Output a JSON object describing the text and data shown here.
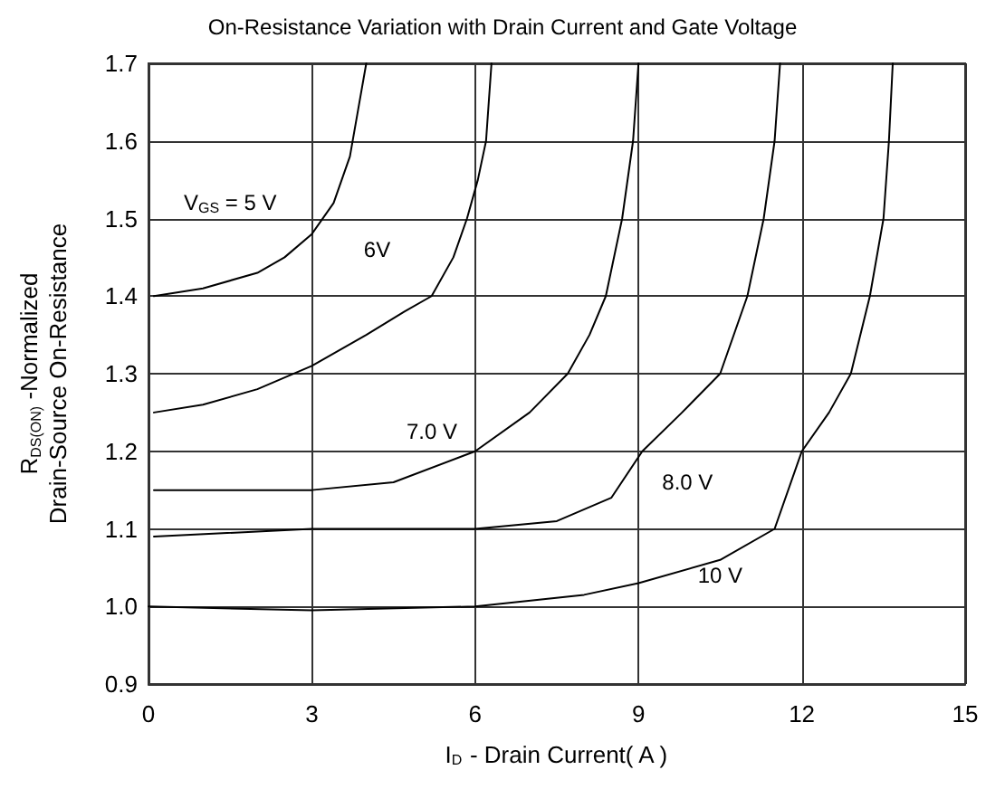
{
  "chart_data": {
    "type": "line",
    "title": "On-Resistance Variation with Drain Current and Gate Voltage",
    "xlabel": "I$_{D}$ - Drain Current( A )",
    "ylabel": "R$_{DS(ON)}$ -Normalized\nDrain-Source On-Resistance",
    "xlim": [
      0,
      15
    ],
    "xticks": [
      0,
      3,
      6,
      9,
      12,
      15
    ],
    "ylim": [
      0.9,
      1.7
    ],
    "yticks": [
      0.9,
      {
        "value": 1,
        "label": "1.0"
      },
      1.1,
      1.2,
      1.3,
      1.4,
      1.5,
      1.6,
      1.7
    ],
    "grid": true,
    "marker": "none",
    "line_style": "solid",
    "series": [
      {
        "name": "V$_{GS}$ = 5 V",
        "color": "#000000",
        "x": [
          0.1,
          1,
          2,
          2.5,
          3,
          3.4,
          3.7,
          3.85,
          4.0
        ],
        "values": [
          1.4,
          1.41,
          1.43,
          1.45,
          1.48,
          1.52,
          1.58,
          1.64,
          1.7
        ]
      },
      {
        "name": "6V",
        "color": "#000000",
        "x": [
          0.1,
          1,
          2,
          3,
          4,
          4.7,
          5.2,
          5.6,
          5.85,
          6.05,
          6.2,
          6.3
        ],
        "values": [
          1.25,
          1.26,
          1.28,
          1.31,
          1.35,
          1.38,
          1.4,
          1.45,
          1.5,
          1.55,
          1.6,
          1.7
        ]
      },
      {
        "name": "7.0 V",
        "color": "#000000",
        "x": [
          0.1,
          3,
          4.5,
          6,
          7,
          7.7,
          8.1,
          8.4,
          8.7,
          8.9,
          9.0
        ],
        "values": [
          1.15,
          1.15,
          1.16,
          1.2,
          1.25,
          1.3,
          1.35,
          1.4,
          1.5,
          1.6,
          1.7
        ]
      },
      {
        "name": "8.0 V",
        "color": "#000000",
        "x": [
          0.1,
          3,
          6,
          7.5,
          8.5,
          9.07,
          9.8,
          10.5,
          11.0,
          11.3,
          11.5,
          11.6
        ],
        "values": [
          1.09,
          1.1,
          1.1,
          1.11,
          1.14,
          1.2,
          1.25,
          1.3,
          1.4,
          1.5,
          1.6,
          1.7
        ]
      },
      {
        "name": "10 V",
        "color": "#000000",
        "x": [
          0,
          3,
          6,
          8,
          9,
          10.5,
          11.5,
          12.0,
          12.5,
          12.9,
          13.25,
          13.5,
          13.6,
          13.67
        ],
        "values": [
          1.0,
          0.995,
          1.0,
          1.015,
          1.03,
          1.06,
          1.1,
          1.2,
          1.25,
          1.3,
          1.4,
          1.5,
          1.6,
          1.7
        ]
      }
    ]
  }
}
